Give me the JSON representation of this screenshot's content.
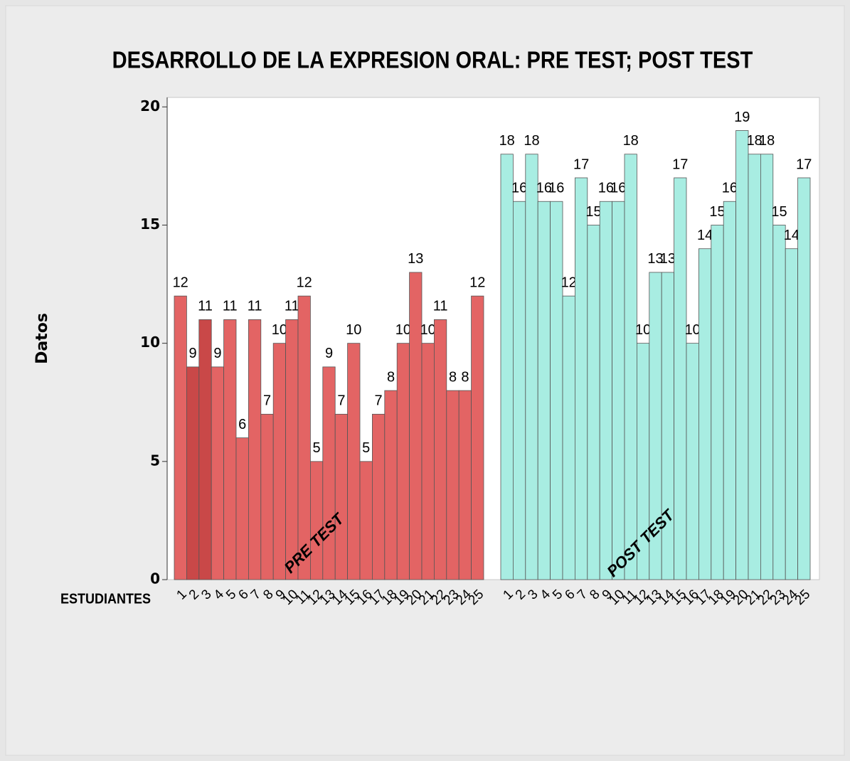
{
  "chart_data": {
    "type": "bar",
    "title": "DESARROLLO DE LA EXPRESION ORAL: PRE TEST; POST TEST",
    "ylabel": "Datos",
    "xlabel": "ESTUDIANTES",
    "categories": [
      "1",
      "2",
      "3",
      "4",
      "5",
      "6",
      "7",
      "8",
      "9",
      "10",
      "11",
      "12",
      "13",
      "14",
      "15",
      "16",
      "17",
      "18",
      "19",
      "20",
      "21",
      "22",
      "23",
      "24",
      "25"
    ],
    "series": [
      {
        "name": "PRE TEST",
        "color": "#e36464",
        "colors": [
          "#e36464",
          "#c94848",
          "#c94848",
          "#e36464",
          "#e36464",
          "#e36464",
          "#e36464",
          "#e36464",
          "#e36464",
          "#e36464",
          "#e36464",
          "#e36464",
          "#e36464",
          "#e36464",
          "#e36464",
          "#e36464",
          "#e36464",
          "#e36464",
          "#e36464",
          "#e36464",
          "#e36464",
          "#e36464",
          "#e36464",
          "#e36464",
          "#e36464"
        ],
        "values": [
          12,
          9,
          11,
          9,
          11,
          6,
          11,
          7,
          10,
          11,
          12,
          5,
          9,
          7,
          10,
          5,
          7,
          8,
          10,
          13,
          10,
          11,
          8,
          8,
          12
        ]
      },
      {
        "name": "POST TEST",
        "color": "#a8ede2",
        "values": [
          18,
          16,
          18,
          16,
          16,
          12,
          17,
          15,
          16,
          16,
          18,
          10,
          13,
          13,
          17,
          10,
          14,
          15,
          16,
          19,
          18,
          18,
          15,
          14,
          17
        ]
      }
    ],
    "ylim": [
      0,
      20.4
    ],
    "yticks": [
      0,
      5,
      10,
      15,
      20
    ]
  }
}
